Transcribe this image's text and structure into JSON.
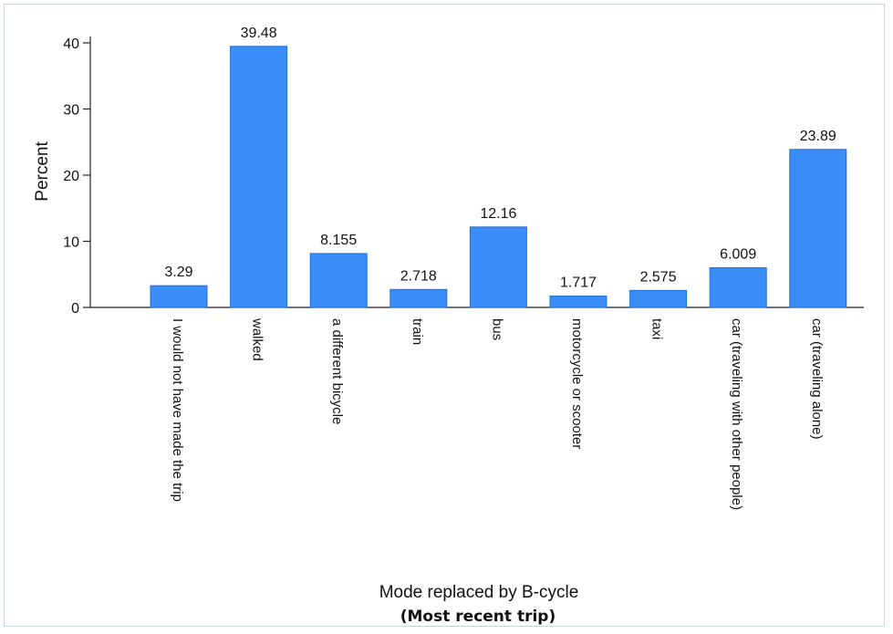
{
  "chart_data": {
    "type": "bar",
    "categories": [
      "I would not have made the trip",
      "walked",
      "a different bicycle",
      "train",
      "bus",
      "motorcycle or scooter",
      "taxi",
      "car (traveling with other people)",
      "car (traveling alone)"
    ],
    "values": [
      3.29,
      39.48,
      8.155,
      2.718,
      12.16,
      1.717,
      2.575,
      6.009,
      23.89
    ],
    "value_labels": [
      "3.29",
      "39.48",
      "8.155",
      "2.718",
      "12.16",
      "1.717",
      "2.575",
      "6.009",
      "23.89"
    ],
    "xlabel": "Mode replaced by B-cycle",
    "subtitle": "(Most recent trip)",
    "ylabel": "Percent",
    "ylim": [
      0,
      40
    ],
    "yticks": [
      "0",
      "10",
      "20",
      "30",
      "40"
    ],
    "grid": false,
    "legend": "none",
    "bar_color": "#3a8cf7"
  }
}
